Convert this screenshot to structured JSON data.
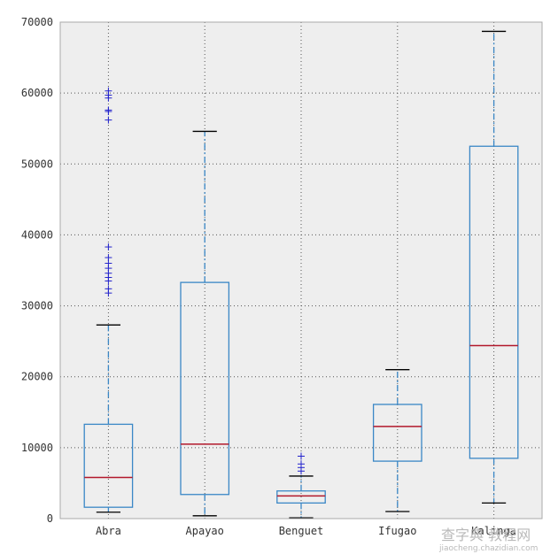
{
  "chart_data": {
    "type": "boxplot",
    "categories": [
      "Abra",
      "Apayao",
      "Benguet",
      "Ifugao",
      "Kalinga"
    ],
    "ylim": [
      0,
      70000
    ],
    "yticks": [
      0,
      10000,
      20000,
      30000,
      40000,
      50000,
      60000,
      70000
    ],
    "grid": true,
    "boxes": [
      {
        "category": "Abra",
        "whisker_low": 900,
        "q1": 1600,
        "median": 5800,
        "q3": 13300,
        "whisker_high": 27300,
        "fliers": [
          31800,
          32400,
          33500,
          34000,
          34600,
          35300,
          36000,
          36800,
          38300,
          56200,
          57400,
          57600,
          59300,
          59700,
          60300
        ]
      },
      {
        "category": "Apayao",
        "whisker_low": 400,
        "q1": 3400,
        "median": 10500,
        "q3": 33300,
        "whisker_high": 54600,
        "fliers": []
      },
      {
        "category": "Benguet",
        "whisker_low": 100,
        "q1": 2200,
        "median": 3200,
        "q3": 3900,
        "whisker_high": 6000,
        "fliers": [
          6700,
          7200,
          7700,
          8800
        ]
      },
      {
        "category": "Ifugao",
        "whisker_low": 1000,
        "q1": 8100,
        "median": 13000,
        "q3": 16100,
        "whisker_high": 21000,
        "fliers": []
      },
      {
        "category": "Kalinga",
        "whisker_low": 2200,
        "q1": 8500,
        "median": 24400,
        "q3": 52500,
        "whisker_high": 68700,
        "fliers": []
      }
    ]
  },
  "watermark": {
    "main": "查字典 教程网",
    "sub": "jiaocheng.chazidian.com"
  },
  "colors": {
    "plot_background": "#eeeeee",
    "box": "#3a87c6",
    "median": "#b2182b",
    "cap": "#000000",
    "flier": "#2222cc"
  }
}
